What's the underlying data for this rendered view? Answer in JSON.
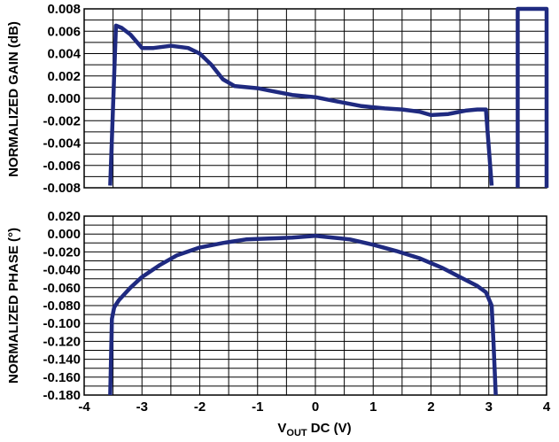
{
  "chart_data": [
    {
      "type": "line",
      "ylabel": "NORMALIZED GAIN (dB)",
      "xlim": [
        -4,
        4
      ],
      "ylim": [
        -0.008,
        0.008
      ],
      "yticks": [
        "0.008",
        "0.006",
        "0.004",
        "0.002",
        "0.000",
        "-0.002",
        "-0.004",
        "-0.006",
        "-0.008"
      ],
      "grid": true,
      "color": "#1f2a80",
      "series": [
        {
          "x": [
            -3.55,
            -3.45,
            -3.35,
            -3.2,
            -3.0,
            -2.8,
            -2.5,
            -2.2,
            -2.0,
            -1.8,
            -1.6,
            -1.4,
            -1.2,
            -1.0,
            -0.8,
            -0.6,
            -0.4,
            -0.2,
            0.0,
            0.2,
            0.5,
            0.8,
            1.0,
            1.2,
            1.5,
            1.8,
            2.0,
            2.3,
            2.6,
            2.8,
            2.95,
            3.05
          ],
          "y": [
            -0.0078,
            0.0065,
            0.0063,
            0.0057,
            0.0045,
            0.0045,
            0.0047,
            0.0045,
            0.004,
            0.003,
            0.0017,
            0.0011,
            0.001,
            0.0009,
            0.0007,
            0.0005,
            0.0003,
            0.0002,
            0.0001,
            -0.0001,
            -0.0004,
            -0.0007,
            -0.0008,
            -0.0009,
            -0.001,
            -0.0012,
            -0.0015,
            -0.0014,
            -0.0011,
            -0.001,
            -0.001,
            -0.0078
          ]
        },
        {
          "x": [
            3.5,
            3.5,
            4.0,
            4.0
          ],
          "y": [
            -0.008,
            0.008,
            0.008,
            -0.008
          ]
        }
      ]
    },
    {
      "type": "line",
      "ylabel": "NORMALIZED PHASE (°)",
      "xlabel_main": "V",
      "xlabel_sub": "OUT",
      "xlabel_rest": " DC (V)",
      "xlim": [
        -4,
        4
      ],
      "ylim": [
        -0.18,
        0.02
      ],
      "yticks": [
        "0.020",
        "0.000",
        "-0.020",
        "-0.040",
        "-0.060",
        "-0.080",
        "-0.100",
        "-0.120",
        "-0.140",
        "-0.160",
        "-0.180"
      ],
      "xticks": [
        "-4",
        "-3",
        "-2",
        "-1",
        "0",
        "1",
        "2",
        "3",
        "4"
      ],
      "grid": true,
      "color": "#1f2a80",
      "series": [
        {
          "x": [
            -3.55,
            -3.52,
            -3.48,
            -3.4,
            -3.2,
            -3.0,
            -2.7,
            -2.4,
            -2.0,
            -1.6,
            -1.2,
            -0.8,
            -0.4,
            0.0,
            0.3,
            0.6,
            1.0,
            1.4,
            1.8,
            2.2,
            2.5,
            2.8,
            2.95,
            3.05,
            3.08,
            3.12
          ],
          "y": [
            -0.18,
            -0.095,
            -0.082,
            -0.074,
            -0.06,
            -0.048,
            -0.035,
            -0.024,
            -0.015,
            -0.01,
            -0.006,
            -0.005,
            -0.004,
            -0.002,
            -0.004,
            -0.006,
            -0.012,
            -0.019,
            -0.027,
            -0.038,
            -0.048,
            -0.058,
            -0.065,
            -0.08,
            -0.12,
            -0.18
          ]
        }
      ]
    }
  ]
}
